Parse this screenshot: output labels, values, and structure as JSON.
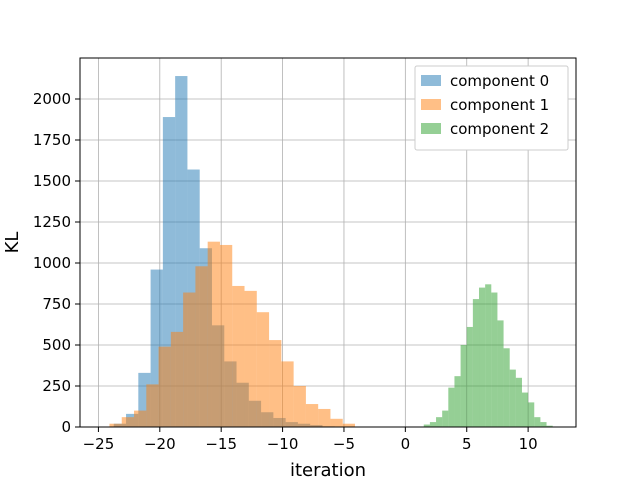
{
  "chart_data": {
    "type": "bar",
    "subtype": "histogram-overlaid",
    "xlabel": "iteration",
    "ylabel": "KL",
    "xlim": [
      -26.5,
      13.9
    ],
    "ylim": [
      0,
      2250
    ],
    "x_ticks": [
      -25,
      -20,
      -15,
      -10,
      -5,
      0,
      5,
      10
    ],
    "x_tick_labels": [
      "−25",
      "−20",
      "−15",
      "−10",
      "−5",
      "0",
      "5",
      "10"
    ],
    "y_ticks": [
      0,
      250,
      500,
      750,
      1000,
      1250,
      1500,
      1750,
      2000
    ],
    "y_tick_labels": [
      "0",
      "250",
      "500",
      "750",
      "1000",
      "1250",
      "1500",
      "1750",
      "2000"
    ],
    "grid": true,
    "legend_position": "upper right",
    "series": [
      {
        "name": "component 0",
        "color": "#1f77b4",
        "alpha": 0.5,
        "bins": [
          {
            "x0": -23.75,
            "x1": -22.75,
            "value": 20
          },
          {
            "x0": -22.75,
            "x1": -21.75,
            "value": 80
          },
          {
            "x0": -21.75,
            "x1": -20.75,
            "value": 330
          },
          {
            "x0": -20.75,
            "x1": -19.75,
            "value": 960
          },
          {
            "x0": -19.75,
            "x1": -18.75,
            "value": 1890
          },
          {
            "x0": -18.75,
            "x1": -17.75,
            "value": 2140
          },
          {
            "x0": -17.75,
            "x1": -16.75,
            "value": 1570
          },
          {
            "x0": -16.75,
            "x1": -15.75,
            "value": 1090
          },
          {
            "x0": -15.75,
            "x1": -14.75,
            "value": 620
          },
          {
            "x0": -14.75,
            "x1": -13.75,
            "value": 400
          },
          {
            "x0": -13.75,
            "x1": -12.75,
            "value": 270
          },
          {
            "x0": -12.75,
            "x1": -11.75,
            "value": 160
          },
          {
            "x0": -11.75,
            "x1": -10.75,
            "value": 90
          },
          {
            "x0": -10.75,
            "x1": -9.75,
            "value": 55
          },
          {
            "x0": -9.75,
            "x1": -8.75,
            "value": 30
          },
          {
            "x0": -8.75,
            "x1": -7.75,
            "value": 20
          },
          {
            "x0": -7.75,
            "x1": -6.75,
            "value": 12
          },
          {
            "x0": -6.75,
            "x1": -5.75,
            "value": 4
          }
        ]
      },
      {
        "name": "component 1",
        "color": "#ff7f0e",
        "alpha": 0.5,
        "bins": [
          {
            "x0": -24.1,
            "x1": -23.1,
            "value": 20
          },
          {
            "x0": -23.1,
            "x1": -22.1,
            "value": 60
          },
          {
            "x0": -22.1,
            "x1": -21.1,
            "value": 100
          },
          {
            "x0": -21.1,
            "x1": -20.1,
            "value": 260
          },
          {
            "x0": -20.1,
            "x1": -19.1,
            "value": 490
          },
          {
            "x0": -19.1,
            "x1": -18.1,
            "value": 580
          },
          {
            "x0": -18.1,
            "x1": -17.1,
            "value": 820
          },
          {
            "x0": -17.1,
            "x1": -16.1,
            "value": 980
          },
          {
            "x0": -16.1,
            "x1": -15.1,
            "value": 1130
          },
          {
            "x0": -15.1,
            "x1": -14.1,
            "value": 1110
          },
          {
            "x0": -14.1,
            "x1": -13.1,
            "value": 860
          },
          {
            "x0": -13.1,
            "x1": -12.1,
            "value": 830
          },
          {
            "x0": -12.1,
            "x1": -11.1,
            "value": 700
          },
          {
            "x0": -11.1,
            "x1": -10.1,
            "value": 530
          },
          {
            "x0": -10.1,
            "x1": -9.1,
            "value": 400
          },
          {
            "x0": -9.1,
            "x1": -8.1,
            "value": 250
          },
          {
            "x0": -8.1,
            "x1": -7.1,
            "value": 140
          },
          {
            "x0": -7.1,
            "x1": -6.1,
            "value": 110
          },
          {
            "x0": -6.1,
            "x1": -5.1,
            "value": 50
          },
          {
            "x0": -5.1,
            "x1": -4.1,
            "value": 20
          }
        ]
      },
      {
        "name": "component 2",
        "color": "#2ca02c",
        "alpha": 0.5,
        "bins": [
          {
            "x0": 1.5,
            "x1": 2.0,
            "value": 15
          },
          {
            "x0": 2.0,
            "x1": 2.5,
            "value": 30
          },
          {
            "x0": 2.5,
            "x1": 3.0,
            "value": 60
          },
          {
            "x0": 3.0,
            "x1": 3.5,
            "value": 100
          },
          {
            "x0": 3.5,
            "x1": 4.0,
            "value": 240
          },
          {
            "x0": 4.0,
            "x1": 4.5,
            "value": 310
          },
          {
            "x0": 4.5,
            "x1": 5.0,
            "value": 500
          },
          {
            "x0": 5.0,
            "x1": 5.5,
            "value": 610
          },
          {
            "x0": 5.5,
            "x1": 6.0,
            "value": 780
          },
          {
            "x0": 6.0,
            "x1": 6.5,
            "value": 850
          },
          {
            "x0": 6.5,
            "x1": 7.0,
            "value": 870
          },
          {
            "x0": 7.0,
            "x1": 7.5,
            "value": 820
          },
          {
            "x0": 7.5,
            "x1": 8.0,
            "value": 650
          },
          {
            "x0": 8.0,
            "x1": 8.5,
            "value": 480
          },
          {
            "x0": 8.5,
            "x1": 9.0,
            "value": 350
          },
          {
            "x0": 9.0,
            "x1": 9.5,
            "value": 300
          },
          {
            "x0": 9.5,
            "x1": 10.0,
            "value": 210
          },
          {
            "x0": 10.0,
            "x1": 10.5,
            "value": 150
          },
          {
            "x0": 10.5,
            "x1": 11.0,
            "value": 60
          },
          {
            "x0": 11.0,
            "x1": 11.5,
            "value": 30
          },
          {
            "x0": 11.5,
            "x1": 12.0,
            "value": 8
          },
          {
            "x0": 12.0,
            "x1": 12.5,
            "value": 3
          }
        ]
      }
    ]
  }
}
